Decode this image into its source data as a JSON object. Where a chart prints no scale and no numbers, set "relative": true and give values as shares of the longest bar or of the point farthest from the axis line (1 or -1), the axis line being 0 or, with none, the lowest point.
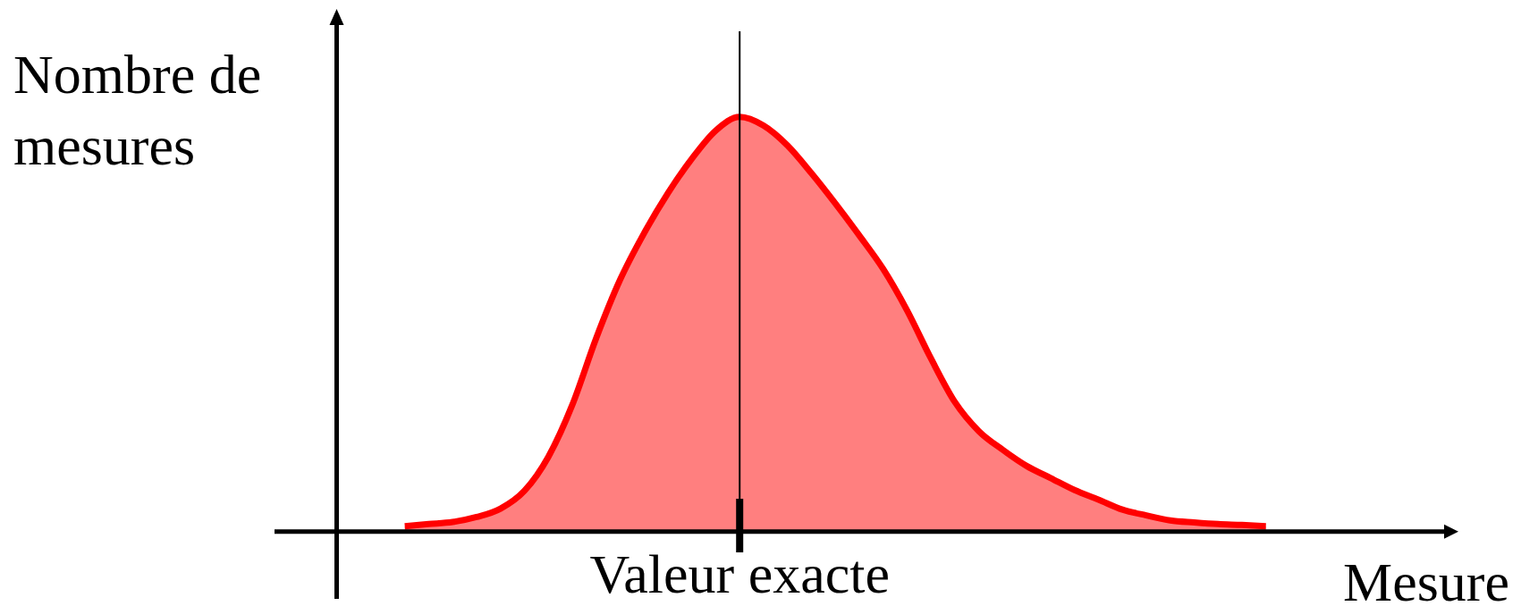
{
  "chart_data": {
    "type": "area",
    "xlabel": "Mesure",
    "ylabel": "Nombre de mesures",
    "relative": true,
    "categories": [
      null,
      null,
      null,
      null,
      null,
      null,
      null,
      null,
      null,
      null,
      null,
      null,
      null,
      null,
      null,
      null,
      null,
      null,
      null,
      null,
      null,
      null,
      null,
      null,
      null,
      null,
      null,
      null,
      null,
      null,
      null,
      null,
      null,
      null,
      null,
      null,
      null
    ],
    "series": [
      {
        "color": "#ff0000",
        "values": [
          0.013,
          0.018,
          0.023,
          0.035,
          0.055,
          0.098,
          0.18,
          0.305,
          0.466,
          0.607,
          0.719,
          0.816,
          0.899,
          0.967,
          1,
          0.979,
          0.931,
          0.864,
          0.791,
          0.714,
          0.633,
          0.533,
          0.417,
          0.312,
          0.242,
          0.197,
          0.158,
          0.129,
          0.1,
          0.077,
          0.053,
          0.039,
          0.027,
          0.022,
          0.018,
          0.016,
          0.013
        ]
      }
    ],
    "annotations": [
      "Valeur exacte"
    ]
  }
}
